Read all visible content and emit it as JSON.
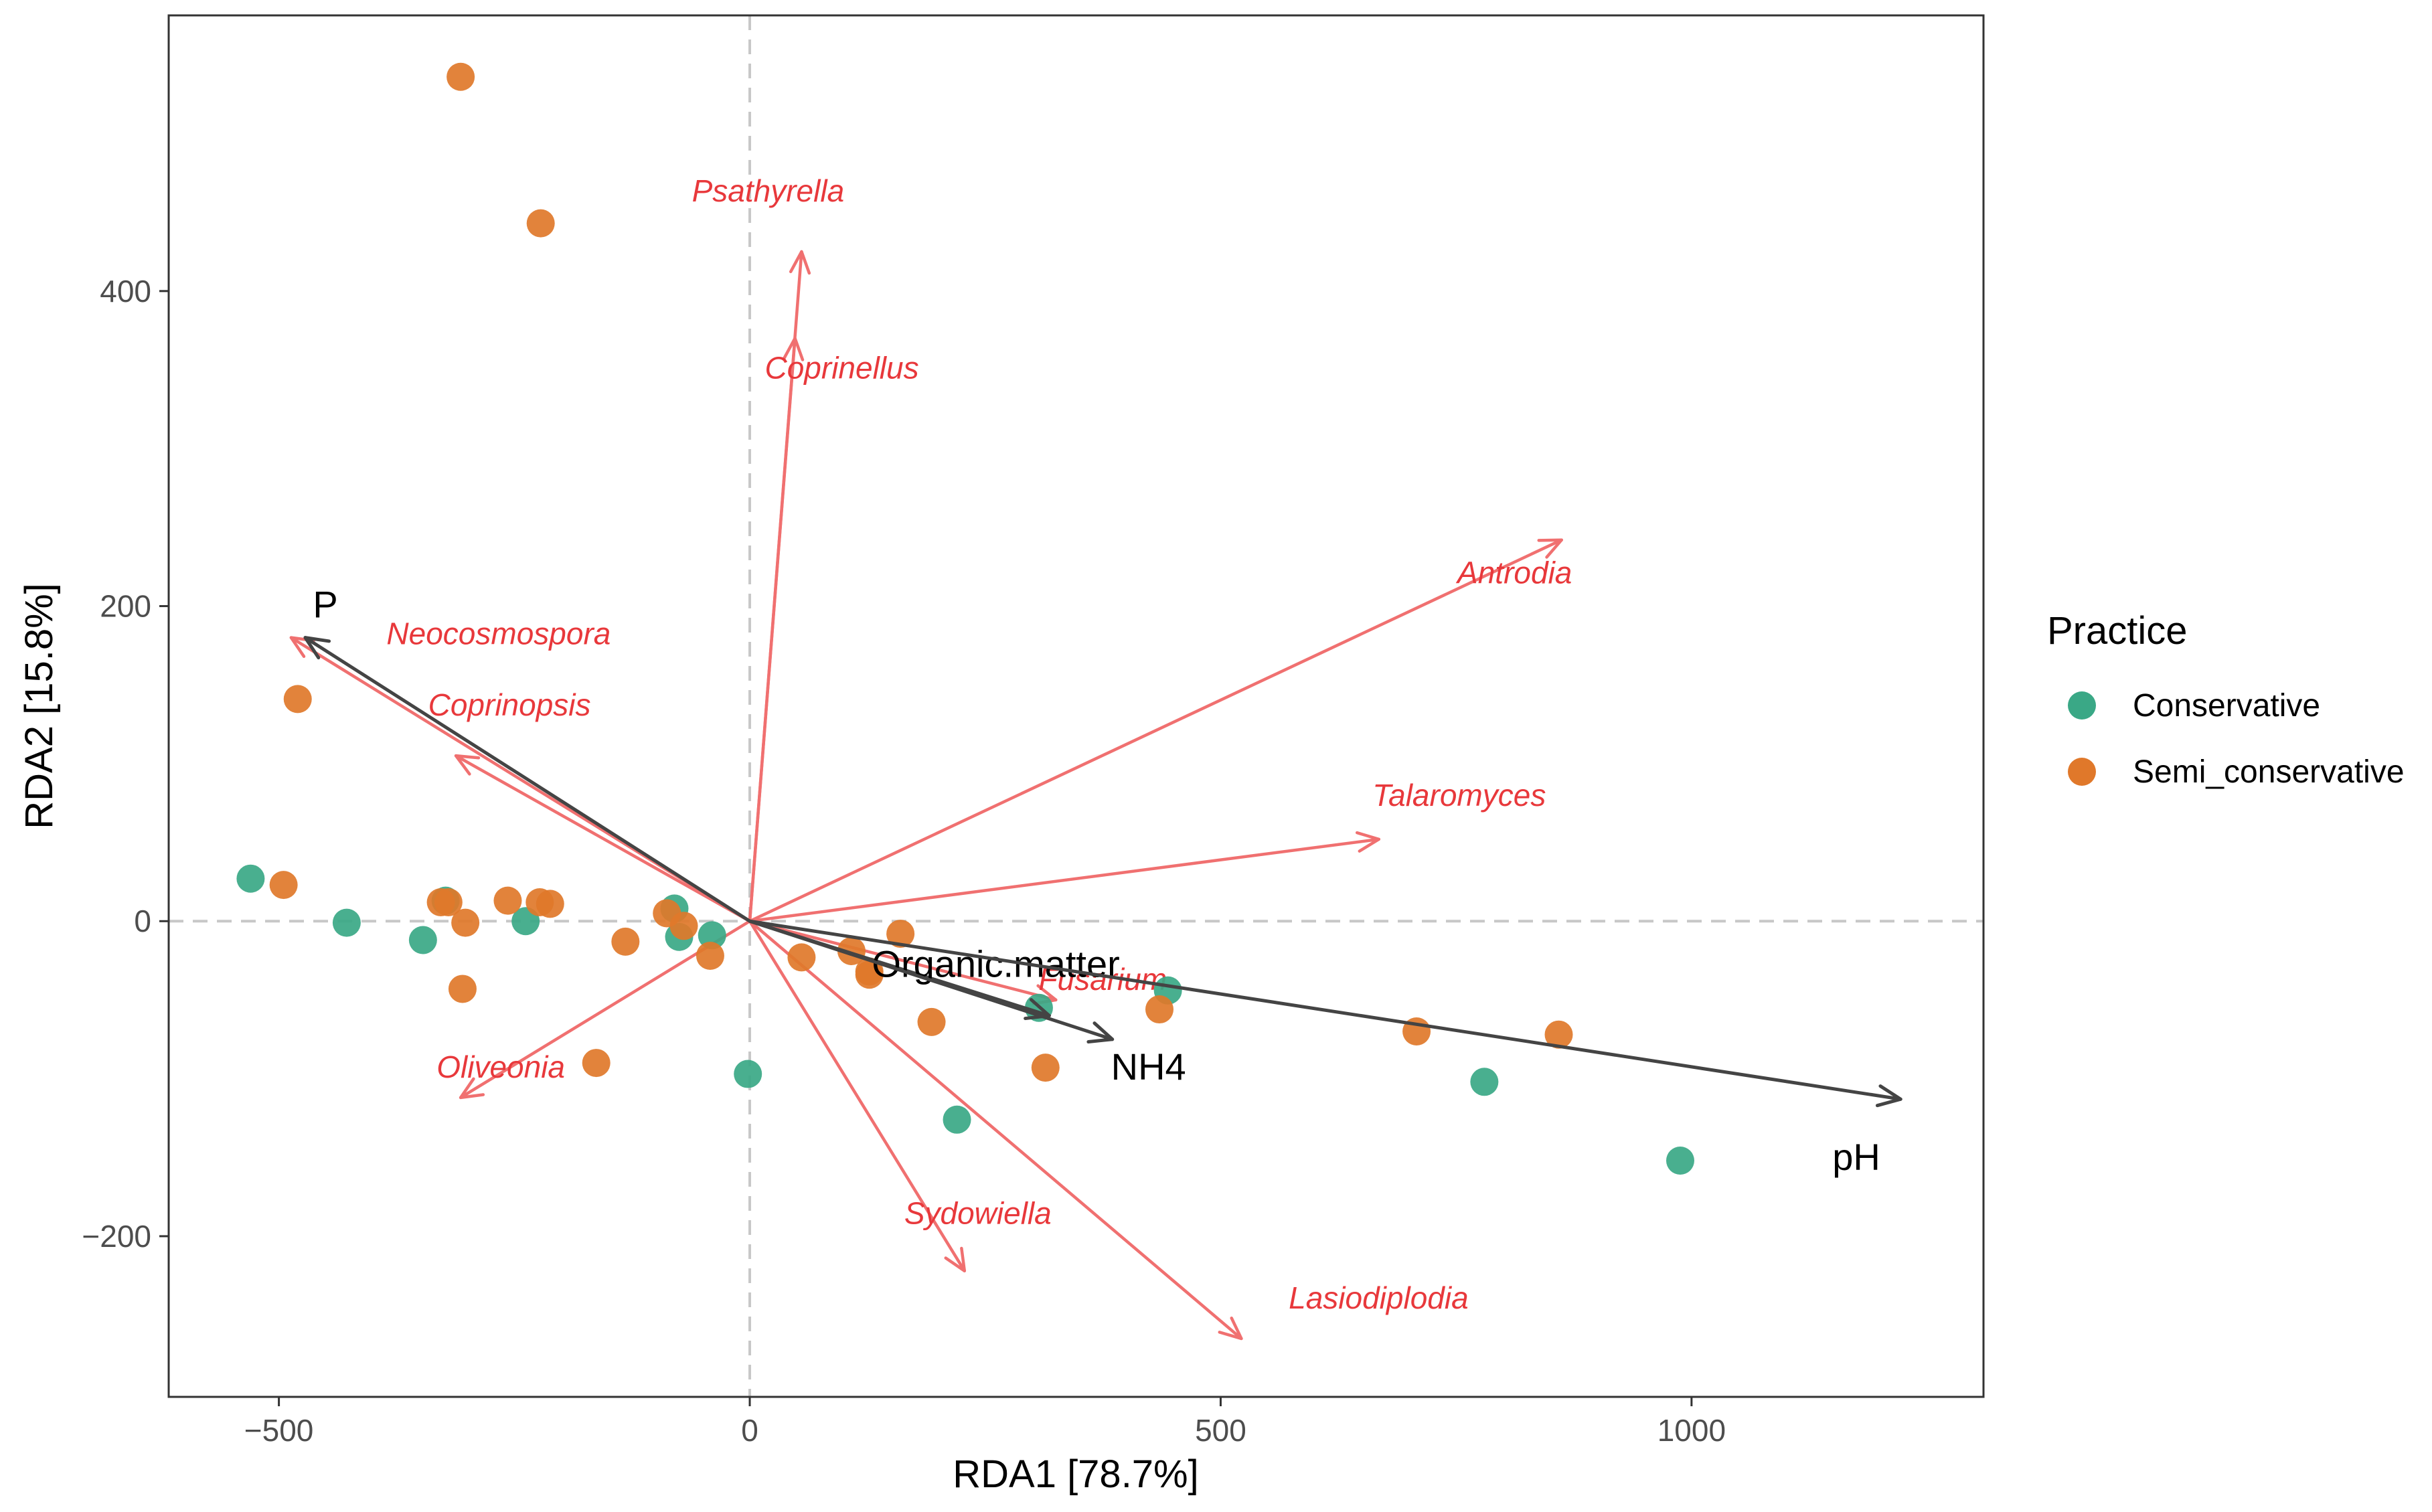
{
  "chart_data": {
    "type": "scatter",
    "subtype": "rda-biplot",
    "xlabel": "RDA1 [78.7%]",
    "ylabel": "RDA2 [15.8%]",
    "xlim": [
      -617,
      1310
    ],
    "ylim": [
      -302,
      575
    ],
    "xticks": [
      -500,
      0,
      500,
      1000
    ],
    "yticks": [
      -200,
      0,
      200,
      400
    ],
    "grid": false,
    "reference_lines": {
      "x": 0,
      "y": 0,
      "style": "dashed"
    },
    "legend": {
      "title": "Practice",
      "placement": "right",
      "entries": [
        {
          "name": "Conservative",
          "color": "#3aa886"
        },
        {
          "name": "Semi_conservative",
          "color": "#e0782a"
        }
      ]
    },
    "series": [
      {
        "name": "Conservative",
        "color": "#3aa886",
        "points": [
          [
            -530,
            27
          ],
          [
            -428,
            -1
          ],
          [
            -347,
            -12
          ],
          [
            -323,
            13
          ],
          [
            -238,
            0
          ],
          [
            -80,
            8
          ],
          [
            -75,
            -10
          ],
          [
            -40,
            -9
          ],
          [
            -2,
            -97
          ],
          [
            220,
            -126
          ],
          [
            307,
            -55
          ],
          [
            444,
            -44
          ],
          [
            780,
            -102
          ],
          [
            988,
            -152
          ]
        ]
      },
      {
        "name": "Semi_conservative",
        "color": "#e0782a",
        "points": [
          [
            -307,
            536
          ],
          [
            -222,
            443
          ],
          [
            -480,
            141
          ],
          [
            -495,
            23
          ],
          [
            -328,
            12
          ],
          [
            -320,
            12
          ],
          [
            -302,
            -1
          ],
          [
            -305,
            -43
          ],
          [
            -257,
            13
          ],
          [
            -223,
            12
          ],
          [
            -212,
            11
          ],
          [
            -163,
            -90
          ],
          [
            -132,
            -13
          ],
          [
            -88,
            5
          ],
          [
            -70,
            -3
          ],
          [
            -42,
            -22
          ],
          [
            55,
            -23
          ],
          [
            108,
            -19
          ],
          [
            127,
            -32
          ],
          [
            160,
            -8
          ],
          [
            193,
            -64
          ],
          [
            314,
            -93
          ],
          [
            435,
            -56
          ],
          [
            708,
            -70
          ],
          [
            859,
            -72
          ],
          [
            127,
            -34
          ]
        ]
      }
    ],
    "species_vectors": {
      "color": "#f07070",
      "label_color": "#e8383b",
      "items": [
        {
          "name": "Psathyrella",
          "x": 55,
          "y": 425
        },
        {
          "name": "Coprinellus",
          "x": 48,
          "y": 370
        },
        {
          "name": "Antrodia",
          "x": 862,
          "y": 242
        },
        {
          "name": "Neocosmospora",
          "x": -487,
          "y": 180
        },
        {
          "name": "Coprinopsis",
          "x": -312,
          "y": 105
        },
        {
          "name": "Talaromyces",
          "x": 668,
          "y": 52
        },
        {
          "name": "Fusarium",
          "x": 325,
          "y": -50
        },
        {
          "name": "Oliveonia",
          "x": -307,
          "y": -112
        },
        {
          "name": "Sydowiella",
          "x": 228,
          "y": -222
        },
        {
          "name": "Lasiodiplodia",
          "x": 522,
          "y": -265
        }
      ]
    },
    "environment_vectors": {
      "color": "#444444",
      "items": [
        {
          "name": "P",
          "x": -472,
          "y": 180
        },
        {
          "name": "Organic.matter",
          "x": 318,
          "y": -60
        },
        {
          "name": "NH4",
          "x": 385,
          "y": -75
        },
        {
          "name": "pH",
          "x": 1222,
          "y": -113
        }
      ]
    }
  }
}
